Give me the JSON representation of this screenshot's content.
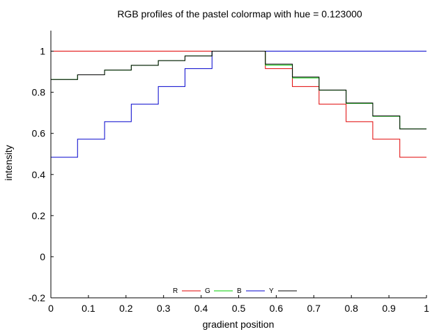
{
  "chart_data": {
    "type": "line",
    "title": "RGB profiles of the pastel colormap with hue = 0.123000",
    "xlabel": "gradient position",
    "ylabel": "intensity",
    "xlim": [
      0,
      1
    ],
    "ylim": [
      -0.2,
      1.1
    ],
    "x_ticks": [
      0,
      0.1,
      0.2,
      0.3,
      0.4,
      0.5,
      0.6,
      0.7,
      0.8,
      0.9,
      1
    ],
    "x_tick_labels": [
      "0",
      "0.1",
      "0.2",
      "0.3",
      "0.4",
      "0.5",
      "0.6",
      "0.7",
      "0.8",
      "0.9",
      "1"
    ],
    "y_ticks": [
      -0.2,
      0,
      0.2,
      0.4,
      0.6,
      0.8,
      1
    ],
    "y_tick_labels": [
      "-0.2",
      "0",
      "0.2",
      "0.4",
      "0.6",
      "0.8",
      "1"
    ],
    "grid": false,
    "legend_position": "bottom-center",
    "series": [
      {
        "name": "R",
        "color": "#e00000",
        "step": true,
        "x": [
          0,
          0.429,
          0.571,
          0.643,
          0.714,
          0.786,
          0.857,
          0.929,
          1.0
        ],
        "y": [
          1.0,
          1.0,
          0.915,
          0.828,
          0.742,
          0.657,
          0.572,
          0.484,
          0.484
        ]
      },
      {
        "name": "G",
        "color": "#00cc00",
        "step": true,
        "x": [
          0,
          0.071,
          0.143,
          0.214,
          0.286,
          0.357,
          0.429,
          0.571,
          0.643,
          0.714,
          0.786,
          0.857,
          0.929,
          1.0
        ],
        "y": [
          0.862,
          0.885,
          0.908,
          0.931,
          0.954,
          0.977,
          1.0,
          0.932,
          0.87,
          0.81,
          0.746,
          0.683,
          0.622,
          0.622
        ]
      },
      {
        "name": "B",
        "color": "#0000cc",
        "step": true,
        "x": [
          0,
          0.071,
          0.143,
          0.214,
          0.286,
          0.357,
          0.429,
          0.571,
          1.0
        ],
        "y": [
          0.484,
          0.572,
          0.657,
          0.742,
          0.828,
          0.915,
          1.0,
          1.0,
          1.0
        ]
      },
      {
        "name": "Y",
        "color": "#000000",
        "step": true,
        "x": [
          0,
          0.071,
          0.143,
          0.214,
          0.286,
          0.357,
          0.429,
          0.571,
          0.643,
          0.714,
          0.786,
          0.857,
          0.929,
          1.0
        ],
        "y": [
          0.862,
          0.885,
          0.908,
          0.931,
          0.954,
          0.977,
          1.0,
          0.937,
          0.874,
          0.811,
          0.748,
          0.685,
          0.622,
          0.622
        ]
      }
    ]
  }
}
